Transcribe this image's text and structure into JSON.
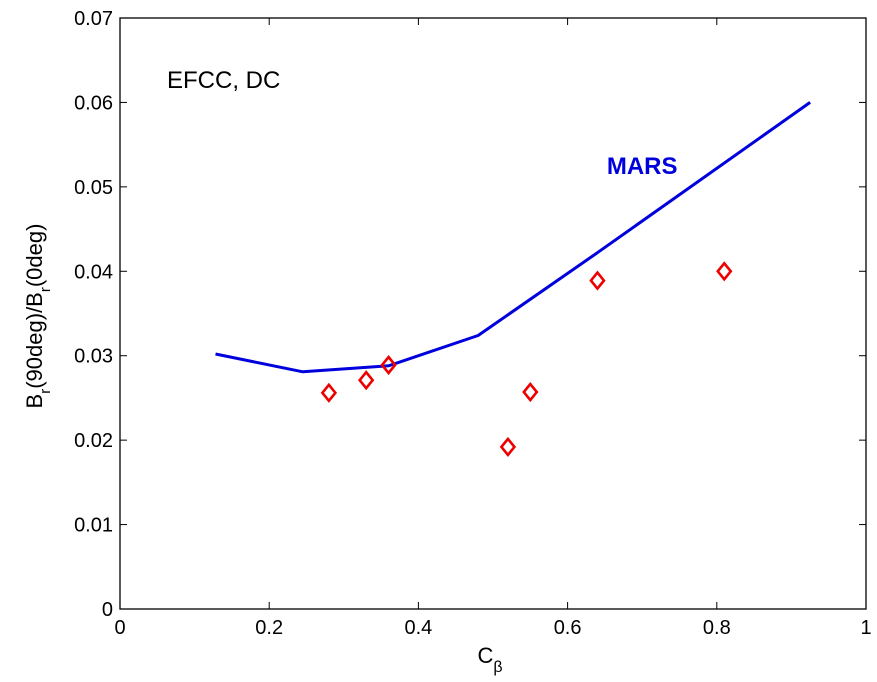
{
  "chart_data": {
    "type": "scatter",
    "xlim": [
      0,
      1
    ],
    "ylim": [
      0,
      0.07
    ],
    "x_ticks": [
      "0",
      "0.2",
      "0.4",
      "0.6",
      "0.8",
      "1"
    ],
    "y_ticks": [
      "0",
      "0.01",
      "0.02",
      "0.03",
      "0.04",
      "0.05",
      "0.06",
      "0.07"
    ],
    "xlabel": {
      "main": "C",
      "sub": "β"
    },
    "ylabel": {
      "p1": "B",
      "s1": "r",
      "p2": "(90deg)/B",
      "s2": "r",
      "p3": "(0deg)"
    },
    "annotation": "EFCC, DC",
    "grid": false,
    "series": [
      {
        "name": "MARS",
        "kind": "line",
        "color": "#0000dd",
        "x": [
          0.128,
          0.245,
          0.36,
          0.48,
          0.64,
          0.925
        ],
        "y": [
          0.0302,
          0.0281,
          0.0288,
          0.0324,
          0.0422,
          0.06
        ]
      },
      {
        "kind": "marker",
        "marker": "diamond",
        "color": "#ee0000",
        "x": [
          0.28,
          0.33,
          0.36,
          0.52,
          0.55,
          0.64,
          0.81
        ],
        "y": [
          0.0256,
          0.0271,
          0.0289,
          0.0192,
          0.0257,
          0.0389,
          0.04
        ]
      }
    ],
    "series_label": {
      "text": "MARS",
      "x": 0.7,
      "y": 0.0515
    }
  }
}
